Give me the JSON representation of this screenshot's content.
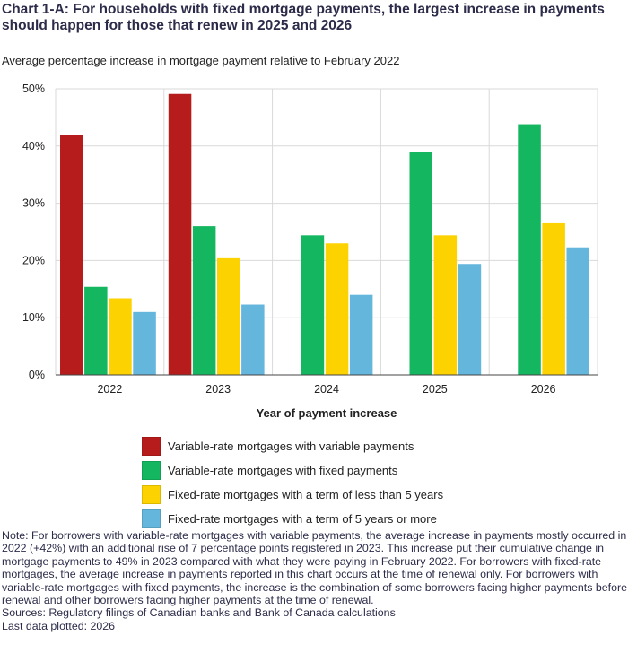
{
  "header": {
    "title": "Chart 1-A: For households with fixed mortgage payments, the largest increase in payments should happen for those that renew in 2025 and 2026",
    "subtitle": "Average percentage increase in mortgage payment relative to February 2022"
  },
  "chart_data": {
    "type": "bar",
    "xlabel": "Year of payment increase",
    "ylabel": "",
    "ylim": [
      0,
      50
    ],
    "yticks": [
      0,
      10,
      20,
      30,
      40,
      50
    ],
    "ytick_labels": [
      "0%",
      "10%",
      "20%",
      "30%",
      "40%",
      "50%"
    ],
    "grid": true,
    "legend_position": "bottom",
    "categories": [
      "2022",
      "2023",
      "2024",
      "2025",
      "2026"
    ],
    "series": [
      {
        "name": "Variable-rate mortgages with variable payments",
        "color": "#b71c1c",
        "values": [
          41.9,
          49.1,
          null,
          null,
          null
        ]
      },
      {
        "name": "Variable-rate mortgages with fixed payments",
        "color": "#14b660",
        "values": [
          15.4,
          26.0,
          24.4,
          39.0,
          43.8
        ]
      },
      {
        "name": "Fixed-rate mortgages with a term of less than 5 years",
        "color": "#fcd200",
        "values": [
          13.4,
          20.4,
          23.0,
          24.4,
          26.5
        ]
      },
      {
        "name": "Fixed-rate mortgages with a term of 5 years or more",
        "color": "#64b6dc",
        "values": [
          11.0,
          12.3,
          14.0,
          19.4,
          22.3
        ]
      }
    ]
  },
  "footer": {
    "note": "Note: For borrowers with variable-rate mortgages with variable payments, the average increase in payments mostly occurred in 2022 (+42%) with an additional rise of 7 percentage points registered in 2023. This increase put their cumulative change in mortgage payments to 49% in 2023 compared with what they were paying in February 2022. For borrowers with fixed-rate mortgages, the average increase in payments reported in this chart occurs at the time of renewal only. For borrowers with variable-rate mortgages with fixed payments, the increase is the combination of some borrowers facing higher payments before renewal and other borrowers facing higher payments at the time of renewal.",
    "sources": "Sources: Regulatory filings of Canadian banks and Bank of Canada calculations",
    "last_data": "Last data plotted: 2026"
  }
}
